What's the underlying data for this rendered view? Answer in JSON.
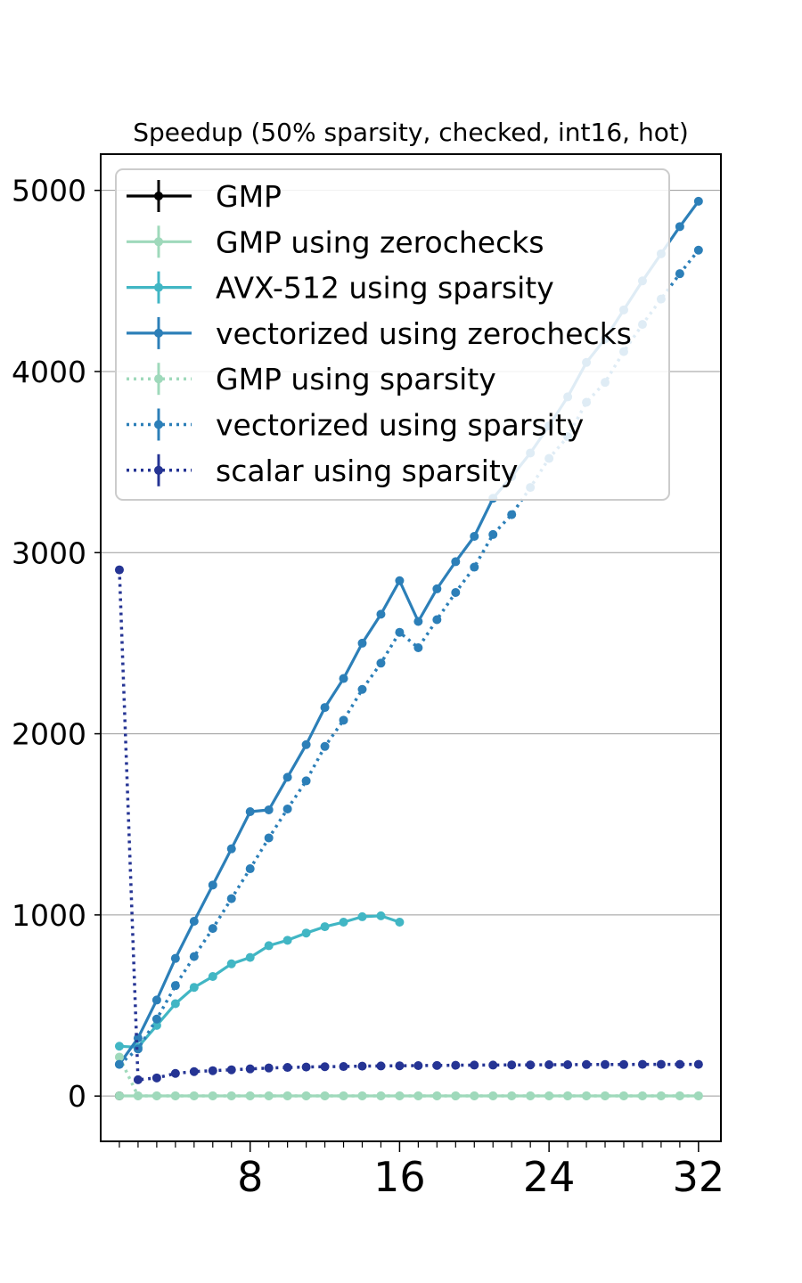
{
  "chart_data": {
    "type": "line",
    "title": "Speedup (50% sparsity, checked, int16, hot)",
    "xlabel": "",
    "ylabel": "",
    "xlim": [
      0,
      33.2
    ],
    "ylim": [
      -250,
      5200
    ],
    "xticks_major": [
      8,
      16,
      24,
      32
    ],
    "xticks_minor": [
      1,
      2,
      3,
      4,
      5,
      6,
      7,
      9,
      10,
      11,
      12,
      13,
      14,
      15,
      17,
      18,
      19,
      20,
      21,
      22,
      23,
      25,
      26,
      27,
      28,
      29,
      30,
      31
    ],
    "yticks": [
      0,
      1000,
      2000,
      3000,
      4000,
      5000
    ],
    "grid": "y",
    "legend": "top-left",
    "series": [
      {
        "name": "GMP",
        "color": "#000000",
        "style": "solid",
        "x": [
          1
        ],
        "y": [
          1
        ]
      },
      {
        "name": "GMP using zerochecks",
        "color": "#9fd9bb",
        "style": "solid",
        "x": [
          1,
          2,
          3,
          4,
          5,
          6,
          7,
          8,
          9,
          10,
          11,
          12,
          13,
          14,
          15,
          16,
          17,
          18,
          19,
          20,
          21,
          22,
          23,
          24,
          25,
          26,
          27,
          28,
          29,
          30,
          31,
          32
        ],
        "y": [
          1,
          1,
          1,
          1,
          1,
          1,
          1,
          1,
          1,
          1,
          1,
          1,
          1,
          1,
          1,
          1,
          1,
          1,
          1,
          1,
          1,
          1,
          1,
          1,
          1,
          1,
          1,
          1,
          1,
          1,
          1,
          1
        ]
      },
      {
        "name": "AVX-512 using sparsity",
        "color": "#41b6c4",
        "style": "solid",
        "x": [
          1,
          2,
          3,
          4,
          5,
          6,
          7,
          8,
          9,
          10,
          11,
          12,
          13,
          14,
          15,
          16
        ],
        "y": [
          275,
          270,
          390,
          510,
          600,
          660,
          730,
          765,
          830,
          860,
          900,
          935,
          960,
          990,
          995,
          960
        ]
      },
      {
        "name": "vectorized using zerochecks",
        "color": "#2c7fb8",
        "style": "solid",
        "x": [
          1,
          2,
          3,
          4,
          5,
          6,
          7,
          8,
          9,
          10,
          11,
          12,
          13,
          14,
          15,
          16,
          17,
          18,
          19,
          20,
          21,
          22,
          23,
          24,
          25,
          26,
          27,
          28,
          29,
          30,
          31,
          32
        ],
        "y": [
          175,
          320,
          530,
          760,
          965,
          1165,
          1365,
          1570,
          1580,
          1760,
          1940,
          2145,
          2305,
          2500,
          2660,
          2845,
          2620,
          2800,
          2950,
          3090,
          3300,
          3420,
          3550,
          3700,
          3860,
          4050,
          4180,
          4340,
          4500,
          4650,
          4800,
          4940
        ]
      },
      {
        "name": "GMP using sparsity",
        "color": "#9fd9bb",
        "style": "dotted",
        "x": [
          1,
          2,
          3,
          4,
          5,
          6,
          7,
          8,
          9,
          10,
          11,
          12,
          13,
          14,
          15,
          16,
          17,
          18,
          19,
          20,
          21,
          22,
          23,
          24,
          25,
          26,
          27,
          28,
          29,
          30,
          31,
          32
        ],
        "y": [
          215,
          1,
          1,
          1,
          1,
          1,
          1,
          1,
          1,
          1,
          1,
          1,
          1,
          1,
          1,
          1,
          1,
          1,
          1,
          1,
          1,
          1,
          1,
          1,
          1,
          1,
          1,
          1,
          1,
          1,
          1,
          1
        ]
      },
      {
        "name": "vectorized using sparsity",
        "color": "#2c7fb8",
        "style": "dotted",
        "x": [
          1,
          2,
          3,
          4,
          5,
          6,
          7,
          8,
          9,
          10,
          11,
          12,
          13,
          14,
          15,
          16,
          17,
          18,
          19,
          20,
          21,
          22,
          23,
          24,
          25,
          26,
          27,
          28,
          29,
          30,
          31,
          32
        ],
        "y": [
          175,
          260,
          425,
          610,
          770,
          925,
          1090,
          1255,
          1425,
          1585,
          1740,
          1930,
          2075,
          2245,
          2390,
          2560,
          2475,
          2630,
          2780,
          2920,
          3100,
          3210,
          3360,
          3520,
          3640,
          3830,
          3940,
          4110,
          4260,
          4400,
          4540,
          4670
        ]
      },
      {
        "name": "scalar using sparsity",
        "color": "#253494",
        "style": "dotted",
        "x": [
          1,
          2,
          3,
          4,
          5,
          6,
          7,
          8,
          9,
          10,
          11,
          12,
          13,
          14,
          15,
          16,
          17,
          18,
          19,
          20,
          21,
          22,
          23,
          24,
          25,
          26,
          27,
          28,
          29,
          30,
          31,
          32
        ],
        "y": [
          2905,
          90,
          100,
          125,
          135,
          140,
          145,
          150,
          155,
          158,
          160,
          162,
          163,
          165,
          166,
          167,
          168,
          169,
          170,
          171,
          171,
          172,
          172,
          173,
          173,
          174,
          174,
          174,
          175,
          175,
          175,
          175
        ]
      }
    ]
  }
}
